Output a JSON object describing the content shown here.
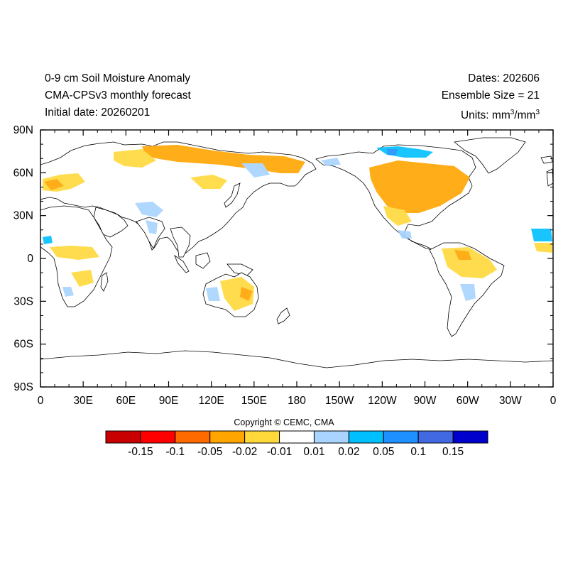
{
  "header": {
    "title_line1": "0-9 cm Soil Moisture Anomaly",
    "title_line2": "CMA-CPSv3 monthly forecast",
    "title_line3": "Initial date: 20260201",
    "dates": "Dates: 202606",
    "ensemble": "Ensemble Size = 21",
    "units_prefix": "Units: mm",
    "units_sup1": "3",
    "units_mid": "/mm",
    "units_sup2": "3"
  },
  "axes": {
    "lon_ticks": [
      "0",
      "30E",
      "60E",
      "90E",
      "120E",
      "150E",
      "180",
      "150W",
      "120W",
      "90W",
      "60W",
      "30W",
      "0"
    ],
    "lat_ticks": [
      "90N",
      "60N",
      "30N",
      "0",
      "30S",
      "60S",
      "90S"
    ]
  },
  "copyright": "Copyright © CEMC, CMA",
  "colorbar": {
    "colors": [
      "#c80000",
      "#ff0000",
      "#ff6a00",
      "#ffa500",
      "#ffd93a",
      "#ffffff",
      "#a8d4ff",
      "#00bfff",
      "#1e90ff",
      "#4169e1",
      "#0000cd"
    ],
    "labels": [
      "-0.15",
      "-0.1",
      "-0.05",
      "-0.02",
      "-0.01",
      "0.01",
      "0.02",
      "0.05",
      "0.1",
      "0.15"
    ]
  }
}
